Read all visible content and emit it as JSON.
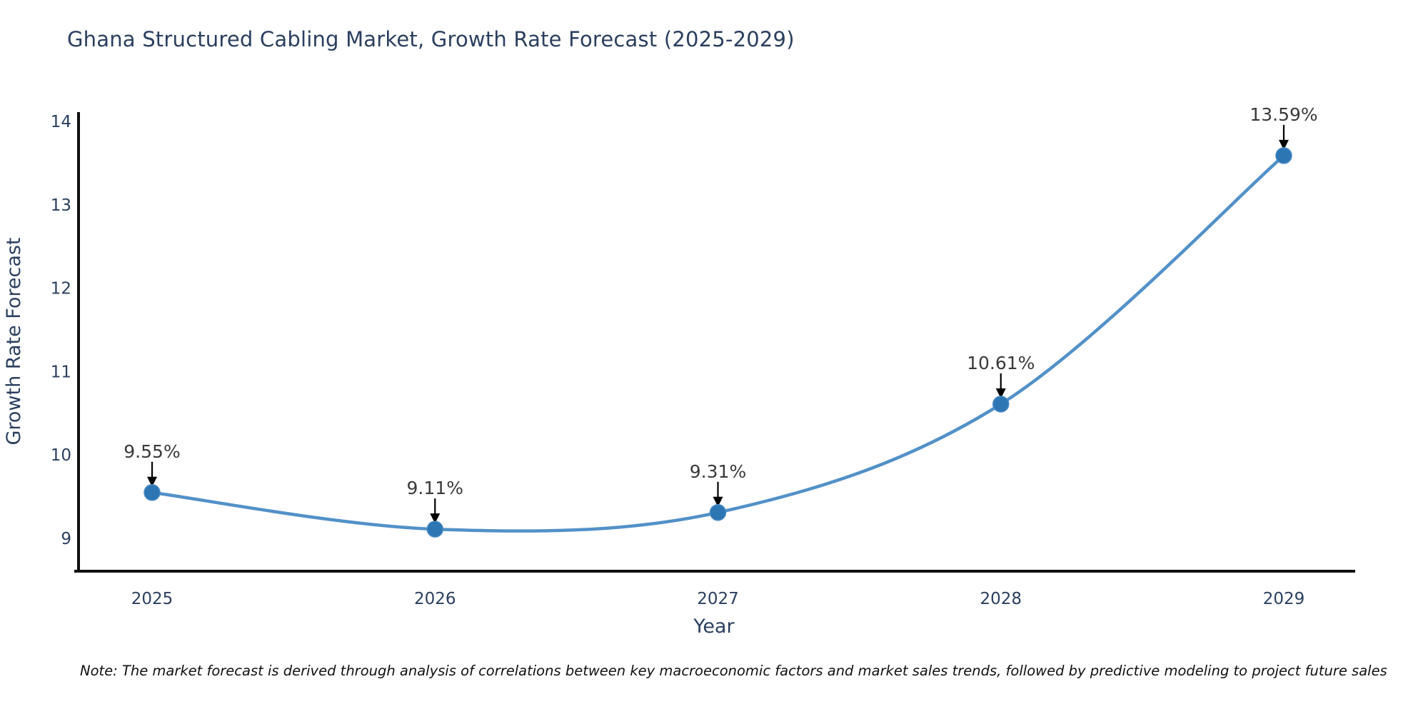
{
  "title": "Ghana Structured Cabling Market, Growth Rate Forecast (2025-2029)",
  "note": "Note: The market forecast is derived through analysis of correlations between key macroeconomic factors and market sales trends, followed by predictive modeling to project future sales",
  "chart_data": {
    "type": "line",
    "title": "Ghana Structured Cabling Market, Growth Rate Forecast (2025-2029)",
    "xlabel": "Year",
    "ylabel": "Growth Rate Forecast",
    "x": [
      2025,
      2026,
      2027,
      2028,
      2029
    ],
    "y": [
      9.55,
      9.11,
      9.31,
      10.61,
      13.59
    ],
    "point_labels": [
      "9.55%",
      "9.11%",
      "9.31%",
      "10.61%",
      "13.59%"
    ],
    "yticks": [
      9,
      10,
      11,
      12,
      13,
      14
    ],
    "ylim": [
      8.6,
      14.15
    ],
    "line_shape": "spline",
    "grid": false,
    "legend": "none",
    "colors": {
      "line": "#5291c8",
      "marker": "#2d76b4",
      "marker_edge": "#4a8ac2",
      "arrow": "#000000",
      "axis": "#0f0f0f",
      "axis_text": "#2b3f5f",
      "annotation_text": "#3a3a3a",
      "background": "#ffffff"
    }
  }
}
